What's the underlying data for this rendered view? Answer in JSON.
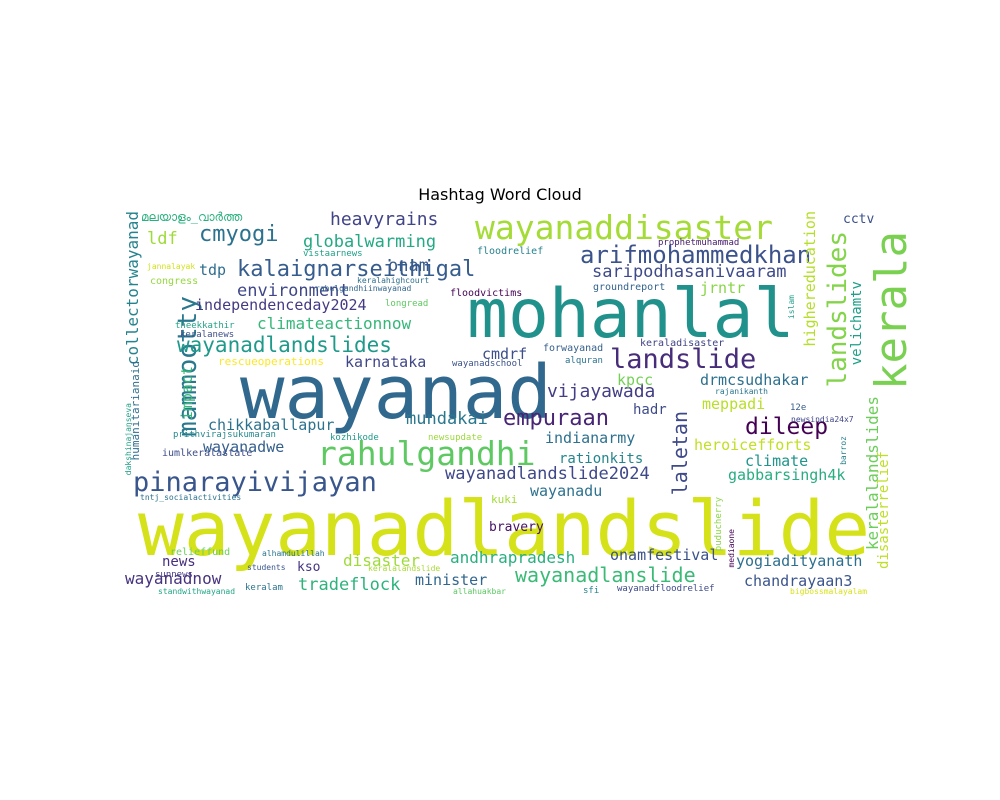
{
  "title": "Hashtag Word Cloud",
  "words": [
    {
      "text": "wayanadlandslide",
      "color": "#d5e21a"
    },
    {
      "text": "wayanad",
      "color": "#31688e"
    },
    {
      "text": "mohanlal",
      "color": "#21918c"
    },
    {
      "text": "kerala",
      "color": "#7ad151"
    },
    {
      "text": "wayanaddisaster",
      "color": "#a5db36"
    },
    {
      "text": "rahulgandhi",
      "color": "#5ec962"
    },
    {
      "text": "pinarayivijayan",
      "color": "#39568c"
    },
    {
      "text": "landslide",
      "color": "#472c7a"
    },
    {
      "text": "mammootty",
      "color": "#2a788e"
    },
    {
      "text": "landslides",
      "color": "#84d44b"
    },
    {
      "text": "arifmohammedkhan",
      "color": "#3b528b"
    },
    {
      "text": "kalaignarseithigal",
      "color": "#365d8d"
    },
    {
      "text": "wayanadlandslides",
      "color": "#1f9a8a"
    },
    {
      "text": "dileep",
      "color": "#440154"
    },
    {
      "text": "empuraan",
      "color": "#482475"
    },
    {
      "text": "cmyogi",
      "color": "#2c728e"
    },
    {
      "text": "wayanadlanslide",
      "color": "#3aba76"
    },
    {
      "text": "laletan",
      "color": "#3e4989"
    },
    {
      "text": "wayanadlandslide2024",
      "color": "#3f4889"
    },
    {
      "text": "heavyrains",
      "color": "#414487"
    },
    {
      "text": "collectorwayanad",
      "color": "#25838e"
    },
    {
      "text": "globalwarming",
      "color": "#23a983"
    },
    {
      "text": "environment",
      "color": "#3f4788"
    },
    {
      "text": "saripodhasanivaaram",
      "color": "#3e4a89"
    },
    {
      "text": "climateactionnow",
      "color": "#35b779"
    },
    {
      "text": "vijayawada",
      "color": "#433e85"
    },
    {
      "text": "keralalandslides",
      "color": "#6ccd5a"
    },
    {
      "text": "ldf",
      "color": "#a0da39"
    },
    {
      "text": "independenceday2024",
      "color": "#443a83"
    },
    {
      "text": "tdp",
      "color": "#2e6e8e"
    },
    {
      "text": "onam",
      "color": "#375a8c"
    },
    {
      "text": "jrntr",
      "color": "#89d548"
    },
    {
      "text": "highereducation",
      "color": "#b5de2b"
    },
    {
      "text": "cmdrf",
      "color": "#3d4e8a"
    },
    {
      "text": "karnataka",
      "color": "#3f4788"
    },
    {
      "text": "impact",
      "color": "#35b779"
    },
    {
      "text": "mundakai",
      "color": "#2a778e"
    },
    {
      "text": "drmcsudhakar",
      "color": "#2d708e"
    },
    {
      "text": "kpcc",
      "color": "#74d055"
    },
    {
      "text": "meppadi",
      "color": "#b8de29"
    },
    {
      "text": "chikkaballapur",
      "color": "#2c728e"
    },
    {
      "text": "wayanadwe",
      "color": "#355f8d"
    },
    {
      "text": "hadr",
      "color": "#3e4c8a"
    },
    {
      "text": "indianarmy",
      "color": "#2d718e"
    },
    {
      "text": "heroicefforts",
      "color": "#c0df25"
    },
    {
      "text": "climate",
      "color": "#1f958b"
    },
    {
      "text": "gabbarsingh4k",
      "color": "#27ad81"
    },
    {
      "text": "disasterrelief",
      "color": "#bddf26"
    },
    {
      "text": "velichamtv",
      "color": "#1fa088"
    },
    {
      "text": "wayanadu",
      "color": "#2d718e"
    },
    {
      "text": "rationkits",
      "color": "#24868e"
    },
    {
      "text": "andhrapradesh",
      "color": "#29af7f"
    },
    {
      "text": "disaster",
      "color": "#9fda3a"
    },
    {
      "text": "onamfestival",
      "color": "#3b518b"
    },
    {
      "text": "yogiadityanath",
      "color": "#2e6f8e"
    },
    {
      "text": "wayanadnow",
      "color": "#46337e"
    },
    {
      "text": "tradeflock",
      "color": "#2db27d"
    },
    {
      "text": "minister",
      "color": "#31678e"
    },
    {
      "text": "chandrayaan3",
      "color": "#3a548c"
    },
    {
      "text": "news",
      "color": "#472f7d"
    },
    {
      "text": "kso",
      "color": "#453581"
    },
    {
      "text": "cctv",
      "color": "#3c4f8a"
    },
    {
      "text": "bravery",
      "color": "#471164"
    },
    {
      "text": "kuki",
      "color": "#a2da37"
    },
    {
      "text": "മലയാളം_വാർത്ത",
      "color": "#2ab07f"
    },
    {
      "text": "rescueoperations",
      "color": "#fde725"
    },
    {
      "text": "humanitarianaid",
      "color": "#2e6e8e"
    },
    {
      "text": "congress",
      "color": "#95d840"
    },
    {
      "text": "floodrelief",
      "color": "#26828e"
    },
    {
      "text": "prophetmuhammad",
      "color": "#482071"
    },
    {
      "text": "keraladisaster",
      "color": "#414487"
    },
    {
      "text": "floodvictims",
      "color": "#440154"
    },
    {
      "text": "forwayanad",
      "color": "#355f8d"
    },
    {
      "text": "groundreport",
      "color": "#33638d"
    },
    {
      "text": "sunnews",
      "color": "#443983"
    },
    {
      "text": "vistaarnews",
      "color": "#1fa188"
    },
    {
      "text": "jannalayak",
      "color": "#d2e21b"
    },
    {
      "text": "keralahighcourt",
      "color": "#2d708e"
    },
    {
      "text": "rahulgandhiinwayanad",
      "color": "#32658e"
    },
    {
      "text": "longread",
      "color": "#5ec962"
    },
    {
      "text": "theekkathir",
      "color": "#20a386"
    },
    {
      "text": "keralanews",
      "color": "#3d4e8a"
    },
    {
      "text": "wayanadschool",
      "color": "#3b528b"
    },
    {
      "text": "alquran",
      "color": "#2c728e"
    },
    {
      "text": "islam",
      "color": "#1f9e89"
    },
    {
      "text": "rajanikanth",
      "color": "#2a778e"
    },
    {
      "text": "12e",
      "color": "#375b8d"
    },
    {
      "text": "newsindia24x7",
      "color": "#3f4788"
    },
    {
      "text": "barroz",
      "color": "#26818e"
    },
    {
      "text": "dakshinajanseva",
      "color": "#1fa187"
    },
    {
      "text": "prithvirajsukumaran",
      "color": "#23898e"
    },
    {
      "text": "kozhikode",
      "color": "#1e9b8a"
    },
    {
      "text": "newsupdate",
      "color": "#9bd93c"
    },
    {
      "text": "iumlkeralastate",
      "color": "#3d4d8a"
    },
    {
      "text": "tntj_socialactivities",
      "color": "#2c738e"
    },
    {
      "text": "puducherry",
      "color": "#8bd646"
    },
    {
      "text": "mediaone",
      "color": "#440154"
    },
    {
      "text": "relieffund",
      "color": "#6ece58"
    },
    {
      "text": "alhamdulillah",
      "color": "#2a768e"
    },
    {
      "text": "students",
      "color": "#39568c"
    },
    {
      "text": "keralalandslide",
      "color": "#a8db34"
    },
    {
      "text": "allahuakbar",
      "color": "#5cc863"
    },
    {
      "text": "standwithwayanad",
      "color": "#22a785"
    },
    {
      "text": "keralam",
      "color": "#2b748e"
    },
    {
      "text": "sfi",
      "color": "#25848e"
    },
    {
      "text": "wayanadfloodrelief",
      "color": "#3e4a89"
    },
    {
      "text": "bigbossmalayalam",
      "color": "#d8e219"
    }
  ]
}
